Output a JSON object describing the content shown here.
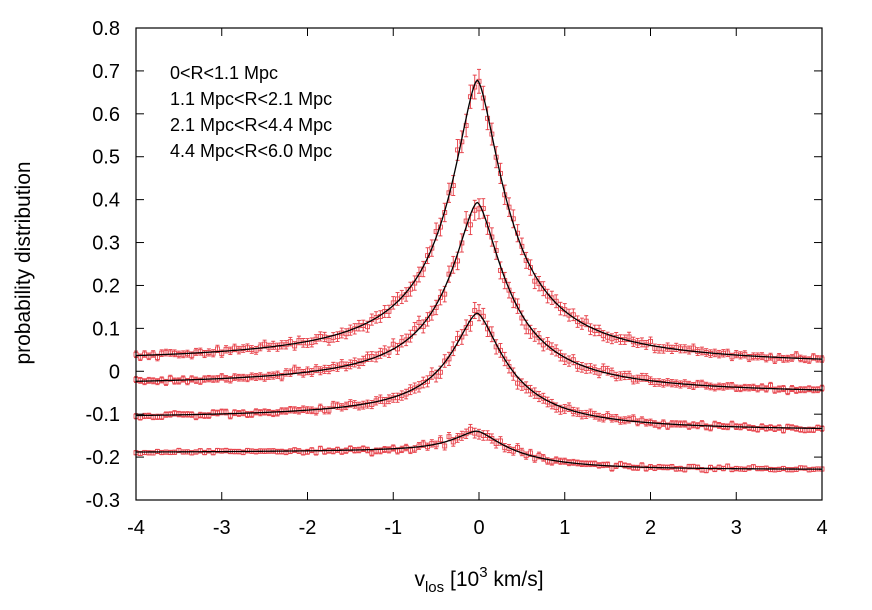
{
  "chart_data": {
    "type": "scatter",
    "title": "",
    "xlabel": "v",
    "xlabel_sub": "los",
    "xlabel_unit_before": " [10",
    "xlabel_sup": "3",
    "xlabel_unit_after": " km/s]",
    "ylabel": "probability distribution",
    "xlim": [
      -4,
      4
    ],
    "ylim": [
      -0.3,
      0.8
    ],
    "x_ticks": [
      "-4",
      "-3",
      "-2",
      "-1",
      "0",
      "1",
      "2",
      "3",
      "4"
    ],
    "y_ticks": [
      "-0.3",
      "-0.2",
      "-0.1",
      "0",
      "0.1",
      "0.2",
      "0.3",
      "0.4",
      "0.5",
      "0.6",
      "0.7",
      "0.8"
    ],
    "grid": false,
    "legend_position": "top-left",
    "point_color": "#e8474f",
    "curve_color": "#000000",
    "series": [
      {
        "name": "0<R<1.1 Mpc",
        "base": 0.015,
        "peak": 0.663,
        "center": -0.02,
        "width": 0.55,
        "shape": 1.6,
        "asym": -0.004
      },
      {
        "name": "1.1 Mpc<R<2.1 Mpc",
        "base": -0.045,
        "peak": 0.438,
        "center": -0.02,
        "width": 0.55,
        "shape": 1.6,
        "asym": -0.01
      },
      {
        "name": "2.1 Mpc<R<4.4 Mpc",
        "base": -0.125,
        "peak": 0.26,
        "center": -0.02,
        "width": 0.55,
        "shape": 1.6,
        "asym": -0.015
      },
      {
        "name": "4.4 Mpc<R<6.0 Mpc",
        "base": -0.21,
        "peak": 0.07,
        "center": -0.02,
        "width": 0.55,
        "shape": 1.6,
        "asym": -0.02
      }
    ],
    "x_bin_step": 0.05
  }
}
